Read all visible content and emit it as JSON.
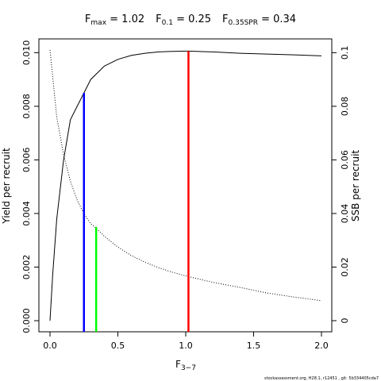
{
  "chart_data": {
    "type": "line",
    "title_parts": [
      {
        "main": "F",
        "sub": "max",
        "value": " = 1.02"
      },
      {
        "main": "F",
        "sub": "0.1",
        "value": " = 0.25"
      },
      {
        "main": "F",
        "sub": "0.35SPR",
        "value": " = 0.34"
      }
    ],
    "xlabel_main": "F",
    "xlabel_sub": "3−7",
    "ylabel": "Yield per recruit",
    "ylabel_right": "SSB per recruit",
    "xlim": [
      0,
      2
    ],
    "ylim": [
      0,
      0.0101
    ],
    "ylim_right": [
      0,
      0.101
    ],
    "x_ticks": [
      0,
      0.5,
      1,
      1.5,
      2
    ],
    "x_tick_labels": [
      "0.0",
      "0.5",
      "1.0",
      "1.5",
      "2.0"
    ],
    "y_ticks": [
      0,
      0.002,
      0.004,
      0.006,
      0.008,
      0.01
    ],
    "y_tick_labels": [
      "0.000",
      "0.002",
      "0.004",
      "0.006",
      "0.008",
      "0.010"
    ],
    "y_right_ticks": [
      0,
      0.02,
      0.04,
      0.06,
      0.08,
      0.1
    ],
    "y_right_tick_labels": [
      "0",
      "0.02",
      "0.04",
      "0.06",
      "0.08",
      "0.1"
    ],
    "series": [
      {
        "style": "solid",
        "axis": "left",
        "color": "#000000",
        "x": [
          0,
          0.02,
          0.05,
          0.1,
          0.15,
          0.2,
          0.25,
          0.3,
          0.4,
          0.5,
          0.6,
          0.7,
          0.8,
          0.9,
          1.0,
          1.02,
          1.2,
          1.4,
          1.6,
          1.8,
          2.0
        ],
        "y": [
          0,
          0.00172,
          0.0038,
          0.006,
          0.0075,
          0.008,
          0.0085,
          0.009,
          0.0095,
          0.00975,
          0.0099,
          0.00998,
          0.01003,
          0.01005,
          0.01006,
          0.01006,
          0.01003,
          0.00998,
          0.00995,
          0.00992,
          0.00988
        ]
      },
      {
        "style": "dotted",
        "axis": "right",
        "color": "#000000",
        "x": [
          0,
          0.05,
          0.1,
          0.15,
          0.2,
          0.25,
          0.3,
          0.34,
          0.4,
          0.5,
          0.6,
          0.7,
          0.8,
          0.9,
          1.0,
          1.2,
          1.4,
          1.6,
          1.8,
          2.0
        ],
        "y": [
          0.101,
          0.076,
          0.062,
          0.052,
          0.045,
          0.0399,
          0.0362,
          0.0345,
          0.0315,
          0.0275,
          0.0243,
          0.0218,
          0.0198,
          0.0181,
          0.0167,
          0.0143,
          0.0124,
          0.0103,
          0.0088,
          0.0075
        ]
      }
    ],
    "reference_lines": [
      {
        "x": 0.25,
        "y_top": 0.0085,
        "color": "#0000ff"
      },
      {
        "x": 0.34,
        "y_top": 0.0035,
        "color": "#00ff00"
      },
      {
        "x": 1.02,
        "y_top": 0.01006,
        "color": "#ff0000"
      }
    ],
    "footer": "stockassessment.org, H28.1, r12451 , git: 5b334405cda7"
  }
}
